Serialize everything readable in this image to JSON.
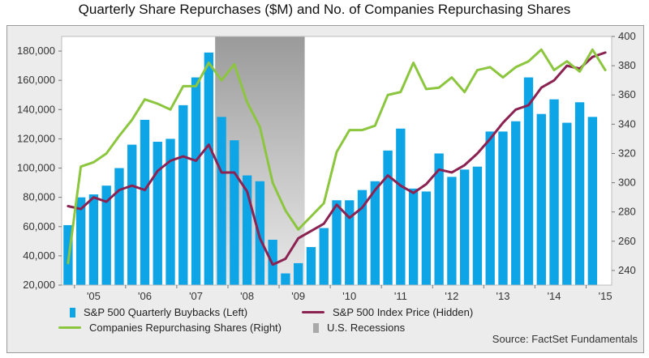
{
  "title": "Quarterly Share Repurchases ($M) and No. of Companies Repurchasing Shares",
  "source": "Source: FactSet Fundamentals",
  "legend": {
    "buybacks": "S&P 500 Quarterly Buybacks (Left)",
    "index": "S&P 500 Index Price (Hidden)",
    "companies": "Companies Repurchasing Shares (Right)",
    "recessions": "U.S. Recessions"
  },
  "colors": {
    "bar": "#0ea5e6",
    "index_line": "#8b2252",
    "companies_line": "#8cc63f",
    "recession": "#a9a9a9",
    "plot_bg": "#ffffff",
    "frame_bg": "#ececec"
  },
  "chart_data": {
    "type": "bar",
    "title": "Quarterly Share Repurchases ($M) and No. of Companies Repurchasing Shares",
    "x_tick_labels": [
      "'05",
      "'06",
      "'07",
      "'08",
      "'09",
      "'10",
      "'11",
      "'12",
      "'13",
      "'14",
      "'15"
    ],
    "y_left": {
      "lim": [
        20000,
        190000
      ],
      "ticks": [
        20000,
        40000,
        60000,
        80000,
        100000,
        120000,
        140000,
        160000,
        180000
      ],
      "tick_labels": [
        "20,000",
        "40,000",
        "60,000",
        "80,000",
        "100,000",
        "120,000",
        "140,000",
        "160,000",
        "180,000"
      ]
    },
    "y_right": {
      "lim": [
        230,
        400
      ],
      "ticks": [
        240,
        260,
        280,
        300,
        320,
        340,
        360,
        380,
        400
      ],
      "tick_labels": [
        "240",
        "260",
        "280",
        "300",
        "320",
        "340",
        "360",
        "380",
        "400"
      ]
    },
    "quarters": [
      "2004Q4",
      "2005Q1",
      "2005Q2",
      "2005Q3",
      "2005Q4",
      "2006Q1",
      "2006Q2",
      "2006Q3",
      "2006Q4",
      "2007Q1",
      "2007Q2",
      "2007Q3",
      "2007Q4",
      "2008Q1",
      "2008Q2",
      "2008Q3",
      "2008Q4",
      "2009Q1",
      "2009Q2",
      "2009Q3",
      "2009Q4",
      "2010Q1",
      "2010Q2",
      "2010Q3",
      "2010Q4",
      "2011Q1",
      "2011Q2",
      "2011Q3",
      "2011Q4",
      "2012Q1",
      "2012Q2",
      "2012Q3",
      "2012Q4",
      "2013Q1",
      "2013Q2",
      "2013Q3",
      "2013Q4",
      "2014Q1",
      "2014Q2",
      "2014Q3",
      "2014Q4",
      "2015Q1",
      "2015Q2"
    ],
    "series": [
      {
        "name": "S&P 500 Quarterly Buybacks (Left)",
        "type": "bar",
        "axis": "left",
        "values": [
          61000,
          80000,
          82000,
          88000,
          100000,
          116000,
          133000,
          118000,
          120000,
          143000,
          162000,
          179000,
          135000,
          119000,
          95000,
          91000,
          51000,
          28000,
          35000,
          46000,
          59000,
          78000,
          78000,
          85000,
          91000,
          112000,
          127000,
          86000,
          84000,
          110000,
          94000,
          99000,
          101000,
          125000,
          125000,
          132000,
          162000,
          137000,
          147000,
          131000,
          145000,
          135000,
          null
        ]
      },
      {
        "name": "Companies Repurchasing Shares (Right)",
        "type": "line",
        "axis": "right",
        "values": [
          245,
          311,
          314,
          320,
          332,
          343,
          357,
          354,
          350,
          366,
          366,
          382,
          370,
          381,
          355,
          338,
          300,
          281,
          268,
          277,
          286,
          321,
          336,
          336,
          339,
          360,
          362,
          382,
          364,
          365,
          372,
          362,
          377,
          379,
          372,
          379,
          383,
          391,
          377,
          383,
          376,
          391,
          377
        ]
      },
      {
        "name": "S&P 500 Index Price (Hidden)",
        "type": "line",
        "axis": "right",
        "values": [
          284,
          282,
          290,
          287,
          295,
          298,
          295,
          308,
          315,
          318,
          315,
          326,
          307,
          307,
          294,
          262,
          244,
          248,
          262,
          267,
          272,
          285,
          276,
          283,
          295,
          305,
          298,
          293,
          299,
          309,
          307,
          312,
          320,
          330,
          341,
          350,
          353,
          365,
          370,
          380,
          378,
          386,
          389
        ]
      },
      {
        "name": "U.S. Recessions",
        "type": "band",
        "from": "2007Q4",
        "to": "2009Q2"
      }
    ],
    "legend_position": "bottom",
    "grid": false
  }
}
